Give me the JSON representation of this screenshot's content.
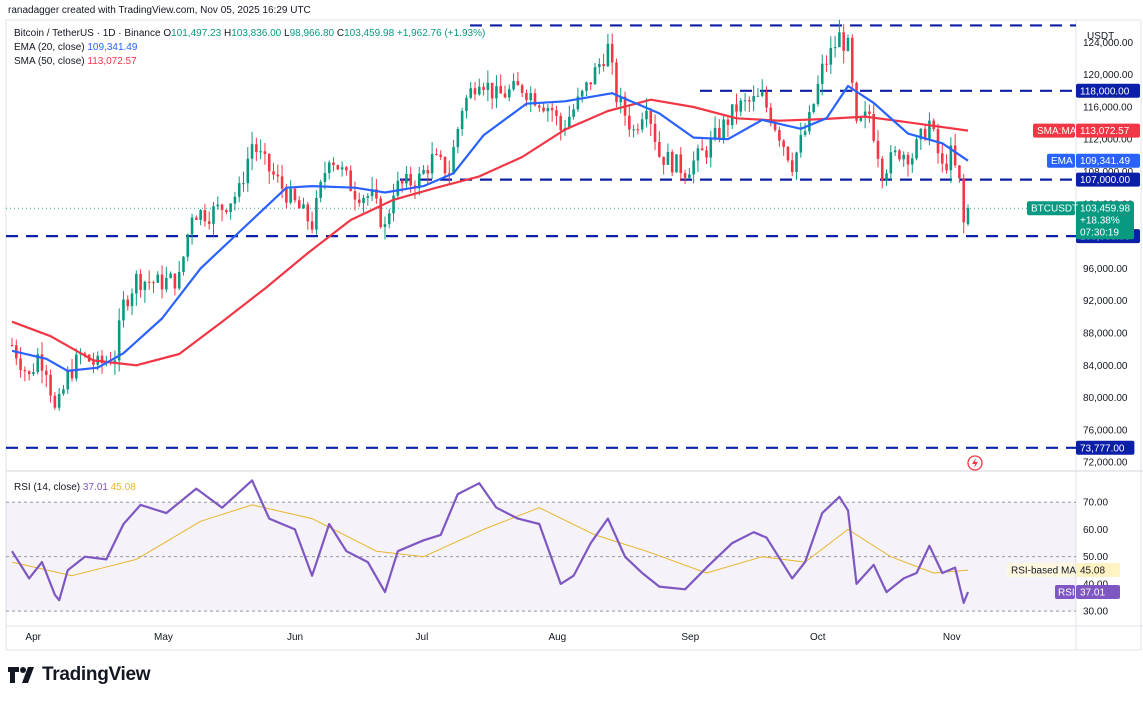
{
  "header": {
    "credit": "ranadagger created with TradingView.com, Nov 05, 2025 16:29 UTC",
    "symbol": "Bitcoin / TetherUS · 1D · Binance",
    "ohlc": [
      {
        "k": "O",
        "v": "101,497.23"
      },
      {
        "k": "H",
        "v": "103,836.00"
      },
      {
        "k": "L",
        "v": "98,966.80"
      },
      {
        "k": "C",
        "v": "103,459.98"
      }
    ],
    "change": "+1,962.76 (+1.93%)",
    "ema_label": "EMA (20, close)",
    "ema_value": "109,341.49",
    "sma_label": "SMA (50, close)",
    "sma_value": "113,072.57",
    "rsi_label": "RSI (14, close)",
    "rsi_value": "37.01",
    "rsi_ma_value": "45.08",
    "currency": "USDT"
  },
  "branding": {
    "name": "TradingView"
  },
  "chart_data": {
    "type": "candlestick",
    "symbol": "BTCUSDT",
    "y_ticks": [
      124000,
      120000,
      116000,
      112000,
      108000,
      104000,
      100000,
      96000,
      92000,
      88000,
      84000,
      80000,
      76000,
      72000
    ],
    "y_tick_labels": [
      "124,000.00",
      "120,000.00",
      "116,000.00",
      "112,000.00",
      "108,000.00",
      "104,000.00",
      "100,000.00",
      "96,000.00",
      "92,000.00",
      "88,000.00",
      "84,000.00",
      "80,000.00",
      "76,000.00",
      "72,000.00"
    ],
    "ylim": [
      71400,
      126400
    ],
    "x_month_labels": [
      "Apr",
      "May",
      "Jun",
      "Jul",
      "Aug",
      "Sep",
      "Oct",
      "Nov"
    ],
    "x_range": [
      "2025-03-27",
      "2025-11-05"
    ],
    "horizontal_levels": [
      {
        "value": 126100,
        "label": ""
      },
      {
        "value": 118000,
        "label": "118,000.00"
      },
      {
        "value": 107000,
        "label": "107,000.00"
      },
      {
        "value": 100000,
        "label": "100,000.00"
      },
      {
        "value": 73777,
        "label": "73,777.00"
      }
    ],
    "last_price": {
      "label": "BTCUSDT",
      "value": "103,459.98",
      "change": "+18.38%",
      "countdown": "07:30:19"
    },
    "ema_tag": {
      "label": "EMA",
      "value": "109,341.49"
    },
    "sma_tag": {
      "label": "SMA:MA",
      "value": "113,072.57"
    },
    "closes": [
      {
        "d": "2025-03-27",
        "c": 86500
      },
      {
        "d": "2025-03-31",
        "c": 82500
      },
      {
        "d": "2025-04-02",
        "c": 85200
      },
      {
        "d": "2025-04-04",
        "c": 83800
      },
      {
        "d": "2025-04-06",
        "c": 78300
      },
      {
        "d": "2025-04-07",
        "c": 79200
      },
      {
        "d": "2025-04-09",
        "c": 82600
      },
      {
        "d": "2025-04-12",
        "c": 85200
      },
      {
        "d": "2025-04-16",
        "c": 84000
      },
      {
        "d": "2025-04-20",
        "c": 85200
      },
      {
        "d": "2025-04-22",
        "c": 91500
      },
      {
        "d": "2025-04-25",
        "c": 94700
      },
      {
        "d": "2025-04-30",
        "c": 94200
      },
      {
        "d": "2025-05-05",
        "c": 94700
      },
      {
        "d": "2025-05-08",
        "c": 103000
      },
      {
        "d": "2025-05-12",
        "c": 102800
      },
      {
        "d": "2025-05-15",
        "c": 103600
      },
      {
        "d": "2025-05-19",
        "c": 105500
      },
      {
        "d": "2025-05-21",
        "c": 109600
      },
      {
        "d": "2025-05-22",
        "c": 111500
      },
      {
        "d": "2025-05-25",
        "c": 108900
      },
      {
        "d": "2025-05-31",
        "c": 104600
      },
      {
        "d": "2025-06-05",
        "c": 101500
      },
      {
        "d": "2025-06-09",
        "c": 110200
      },
      {
        "d": "2025-06-11",
        "c": 108700
      },
      {
        "d": "2025-06-15",
        "c": 105500
      },
      {
        "d": "2025-06-19",
        "c": 104800
      },
      {
        "d": "2025-06-22",
        "c": 100900
      },
      {
        "d": "2025-06-24",
        "c": 105900
      },
      {
        "d": "2025-06-30",
        "c": 107100
      },
      {
        "d": "2025-07-03",
        "c": 109500
      },
      {
        "d": "2025-07-07",
        "c": 108100
      },
      {
        "d": "2025-07-10",
        "c": 116000
      },
      {
        "d": "2025-07-14",
        "c": 119800
      },
      {
        "d": "2025-07-18",
        "c": 117300
      },
      {
        "d": "2025-07-24",
        "c": 118400
      },
      {
        "d": "2025-07-31",
        "c": 115700
      },
      {
        "d": "2025-08-02",
        "c": 113200
      },
      {
        "d": "2025-08-07",
        "c": 117400
      },
      {
        "d": "2025-08-13",
        "c": 123300
      },
      {
        "d": "2025-08-15",
        "c": 117300
      },
      {
        "d": "2025-08-19",
        "c": 113000
      },
      {
        "d": "2025-08-22",
        "c": 116800
      },
      {
        "d": "2025-08-25",
        "c": 110100
      },
      {
        "d": "2025-08-31",
        "c": 108200
      },
      {
        "d": "2025-09-05",
        "c": 110700
      },
      {
        "d": "2025-09-12",
        "c": 115900
      },
      {
        "d": "2025-09-18",
        "c": 117100
      },
      {
        "d": "2025-09-22",
        "c": 112700
      },
      {
        "d": "2025-09-25",
        "c": 109000
      },
      {
        "d": "2025-09-29",
        "c": 114300
      },
      {
        "d": "2025-10-02",
        "c": 120600
      },
      {
        "d": "2025-10-06",
        "c": 124700
      },
      {
        "d": "2025-10-08",
        "c": 123300
      },
      {
        "d": "2025-10-10",
        "c": 113200
      },
      {
        "d": "2025-10-13",
        "c": 115200
      },
      {
        "d": "2025-10-16",
        "c": 108200
      },
      {
        "d": "2025-10-20",
        "c": 110500
      },
      {
        "d": "2025-10-23",
        "c": 110000
      },
      {
        "d": "2025-10-27",
        "c": 114100
      },
      {
        "d": "2025-10-30",
        "c": 108300
      },
      {
        "d": "2025-11-01",
        "c": 110100
      },
      {
        "d": "2025-11-03",
        "c": 106500
      },
      {
        "d": "2025-11-04",
        "c": 101500
      },
      {
        "d": "2025-11-05",
        "c": 103460
      }
    ],
    "ema20": [
      {
        "d": "2025-03-27",
        "v": 85800
      },
      {
        "d": "2025-04-04",
        "v": 84800
      },
      {
        "d": "2025-04-09",
        "v": 83300
      },
      {
        "d": "2025-04-16",
        "v": 83700
      },
      {
        "d": "2025-04-22",
        "v": 85500
      },
      {
        "d": "2025-05-01",
        "v": 89800
      },
      {
        "d": "2025-05-10",
        "v": 96000
      },
      {
        "d": "2025-05-20",
        "v": 101000
      },
      {
        "d": "2025-05-30",
        "v": 106000
      },
      {
        "d": "2025-06-05",
        "v": 106200
      },
      {
        "d": "2025-06-15",
        "v": 106000
      },
      {
        "d": "2025-06-22",
        "v": 105400
      },
      {
        "d": "2025-07-01",
        "v": 106200
      },
      {
        "d": "2025-07-08",
        "v": 107800
      },
      {
        "d": "2025-07-15",
        "v": 112500
      },
      {
        "d": "2025-07-25",
        "v": 116400
      },
      {
        "d": "2025-08-03",
        "v": 116700
      },
      {
        "d": "2025-08-14",
        "v": 117700
      },
      {
        "d": "2025-08-25",
        "v": 115200
      },
      {
        "d": "2025-09-02",
        "v": 112200
      },
      {
        "d": "2025-09-10",
        "v": 112000
      },
      {
        "d": "2025-09-18",
        "v": 114400
      },
      {
        "d": "2025-09-27",
        "v": 113300
      },
      {
        "d": "2025-10-03",
        "v": 114600
      },
      {
        "d": "2025-10-08",
        "v": 118600
      },
      {
        "d": "2025-10-14",
        "v": 116500
      },
      {
        "d": "2025-10-22",
        "v": 112700
      },
      {
        "d": "2025-10-30",
        "v": 111500
      },
      {
        "d": "2025-11-05",
        "v": 109341
      }
    ],
    "sma50": [
      {
        "d": "2025-03-27",
        "v": 89400
      },
      {
        "d": "2025-04-05",
        "v": 87600
      },
      {
        "d": "2025-04-15",
        "v": 84600
      },
      {
        "d": "2025-04-25",
        "v": 84000
      },
      {
        "d": "2025-05-05",
        "v": 85400
      },
      {
        "d": "2025-05-15",
        "v": 89400
      },
      {
        "d": "2025-05-25",
        "v": 93500
      },
      {
        "d": "2025-06-04",
        "v": 97900
      },
      {
        "d": "2025-06-14",
        "v": 102000
      },
      {
        "d": "2025-06-24",
        "v": 104500
      },
      {
        "d": "2025-07-04",
        "v": 106000
      },
      {
        "d": "2025-07-14",
        "v": 107400
      },
      {
        "d": "2025-07-24",
        "v": 109800
      },
      {
        "d": "2025-08-03",
        "v": 113200
      },
      {
        "d": "2025-08-13",
        "v": 115500
      },
      {
        "d": "2025-08-23",
        "v": 116900
      },
      {
        "d": "2025-09-02",
        "v": 116000
      },
      {
        "d": "2025-09-12",
        "v": 114600
      },
      {
        "d": "2025-09-22",
        "v": 114300
      },
      {
        "d": "2025-10-02",
        "v": 114500
      },
      {
        "d": "2025-10-12",
        "v": 114800
      },
      {
        "d": "2025-10-22",
        "v": 114100
      },
      {
        "d": "2025-11-05",
        "v": 113073
      }
    ],
    "rsi": {
      "y_ticks": [
        70,
        60,
        50,
        40,
        30
      ],
      "ylim": [
        26,
        80
      ],
      "lines": [
        {
          "value": 70,
          "label": "70.00"
        },
        {
          "value": 50,
          "label": "50.00"
        },
        {
          "value": 30,
          "label": "30.00"
        }
      ],
      "rsi_tag": {
        "label": "RSI",
        "value": "37.01"
      },
      "ma_tag": {
        "label": "RSI-based MA",
        "value": "45.08"
      },
      "rsi_values": [
        {
          "d": "2025-03-27",
          "v": 52
        },
        {
          "d": "2025-03-31",
          "v": 42
        },
        {
          "d": "2025-04-03",
          "v": 48
        },
        {
          "d": "2025-04-06",
          "v": 36
        },
        {
          "d": "2025-04-07",
          "v": 34
        },
        {
          "d": "2025-04-09",
          "v": 45
        },
        {
          "d": "2025-04-13",
          "v": 50
        },
        {
          "d": "2025-04-18",
          "v": 49
        },
        {
          "d": "2025-04-22",
          "v": 62
        },
        {
          "d": "2025-04-26",
          "v": 69
        },
        {
          "d": "2025-05-02",
          "v": 66
        },
        {
          "d": "2025-05-09",
          "v": 75
        },
        {
          "d": "2025-05-15",
          "v": 68
        },
        {
          "d": "2025-05-22",
          "v": 78
        },
        {
          "d": "2025-05-26",
          "v": 64
        },
        {
          "d": "2025-06-01",
          "v": 60
        },
        {
          "d": "2025-06-05",
          "v": 43
        },
        {
          "d": "2025-06-09",
          "v": 62
        },
        {
          "d": "2025-06-13",
          "v": 52
        },
        {
          "d": "2025-06-18",
          "v": 48
        },
        {
          "d": "2025-06-22",
          "v": 37
        },
        {
          "d": "2025-06-25",
          "v": 52
        },
        {
          "d": "2025-07-01",
          "v": 56
        },
        {
          "d": "2025-07-05",
          "v": 58
        },
        {
          "d": "2025-07-09",
          "v": 73
        },
        {
          "d": "2025-07-14",
          "v": 77
        },
        {
          "d": "2025-07-18",
          "v": 68
        },
        {
          "d": "2025-07-23",
          "v": 64
        },
        {
          "d": "2025-07-28",
          "v": 62
        },
        {
          "d": "2025-08-02",
          "v": 40
        },
        {
          "d": "2025-08-05",
          "v": 43
        },
        {
          "d": "2025-08-09",
          "v": 55
        },
        {
          "d": "2025-08-13",
          "v": 64
        },
        {
          "d": "2025-08-17",
          "v": 50
        },
        {
          "d": "2025-08-21",
          "v": 44
        },
        {
          "d": "2025-08-25",
          "v": 39
        },
        {
          "d": "2025-08-31",
          "v": 38
        },
        {
          "d": "2025-09-05",
          "v": 46
        },
        {
          "d": "2025-09-11",
          "v": 55
        },
        {
          "d": "2025-09-16",
          "v": 59
        },
        {
          "d": "2025-09-19",
          "v": 57
        },
        {
          "d": "2025-09-25",
          "v": 42
        },
        {
          "d": "2025-09-28",
          "v": 48
        },
        {
          "d": "2025-10-02",
          "v": 66
        },
        {
          "d": "2025-10-06",
          "v": 72
        },
        {
          "d": "2025-10-08",
          "v": 67
        },
        {
          "d": "2025-10-10",
          "v": 40
        },
        {
          "d": "2025-10-14",
          "v": 47
        },
        {
          "d": "2025-10-17",
          "v": 37
        },
        {
          "d": "2025-10-21",
          "v": 42
        },
        {
          "d": "2025-10-24",
          "v": 44
        },
        {
          "d": "2025-10-27",
          "v": 54
        },
        {
          "d": "2025-10-30",
          "v": 44
        },
        {
          "d": "2025-11-02",
          "v": 46
        },
        {
          "d": "2025-11-04",
          "v": 33
        },
        {
          "d": "2025-11-05",
          "v": 37.01
        }
      ],
      "rsi_ma_values": [
        {
          "d": "2025-03-27",
          "v": 48
        },
        {
          "d": "2025-04-10",
          "v": 43
        },
        {
          "d": "2025-04-25",
          "v": 49
        },
        {
          "d": "2025-05-10",
          "v": 63
        },
        {
          "d": "2025-05-22",
          "v": 69
        },
        {
          "d": "2025-06-05",
          "v": 64
        },
        {
          "d": "2025-06-20",
          "v": 52
        },
        {
          "d": "2025-07-01",
          "v": 50
        },
        {
          "d": "2025-07-15",
          "v": 60
        },
        {
          "d": "2025-07-28",
          "v": 68
        },
        {
          "d": "2025-08-10",
          "v": 58
        },
        {
          "d": "2025-08-22",
          "v": 52
        },
        {
          "d": "2025-09-05",
          "v": 44
        },
        {
          "d": "2025-09-18",
          "v": 50
        },
        {
          "d": "2025-09-28",
          "v": 48
        },
        {
          "d": "2025-10-08",
          "v": 60
        },
        {
          "d": "2025-10-18",
          "v": 50
        },
        {
          "d": "2025-10-28",
          "v": 44
        },
        {
          "d": "2025-11-05",
          "v": 45.08
        }
      ]
    }
  }
}
